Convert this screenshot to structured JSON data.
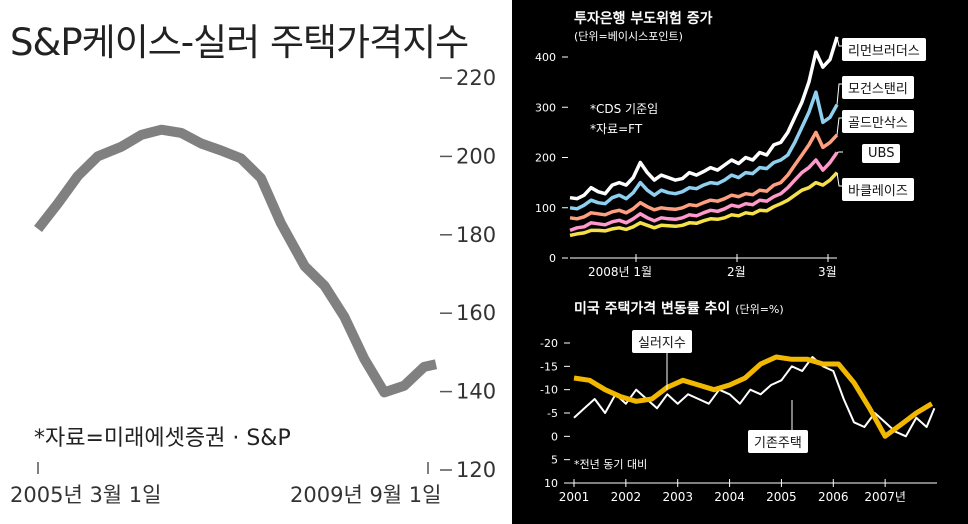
{
  "left_chart": {
    "title": "S&P케이스-실러 주택가격지수",
    "source": "*자료=미래에셋증권 · S&P",
    "chart_data": {
      "type": "line",
      "title": "S&P케이스-실러 주택가격지수",
      "x_labels": [
        "2005년 3월 1일",
        "2009년 9월 1일"
      ],
      "ylim": [
        120,
        220
      ],
      "yticks": [
        220,
        200,
        180,
        160,
        140,
        120
      ],
      "series": [
        {
          "name": "주택가격지수",
          "color": "#808080",
          "x": [
            0,
            0.05,
            0.1,
            0.15,
            0.21,
            0.26,
            0.31,
            0.36,
            0.41,
            0.46,
            0.51,
            0.56,
            0.61,
            0.67,
            0.72,
            0.77,
            0.82,
            0.87,
            0.92,
            0.97,
            1.0
          ],
          "values": [
            181.5,
            188,
            195,
            200,
            202.5,
            205.5,
            206.8,
            206,
            203.3,
            201.5,
            199.5,
            194.5,
            183,
            172,
            167,
            159,
            148.3,
            139.8,
            141.5,
            146.3,
            147
          ]
        }
      ]
    }
  },
  "right_top": {
    "title": "투자은행 부도위험 증가",
    "subtitle": "(단위=베이시스포인트)",
    "notes": [
      "*CDS 기준임",
      "*자료=FT"
    ],
    "chart_data": {
      "type": "line",
      "title": "투자은행 부도위험 증가",
      "ylabel": "베이시스포인트",
      "ylim": [
        0,
        450
      ],
      "yticks": [
        0,
        100,
        200,
        300,
        400
      ],
      "x_labels": [
        "2008년 1월",
        "2월",
        "3월"
      ],
      "series": [
        {
          "name": "리먼브러더스",
          "color": "#ffffff",
          "values": [
            120,
            118,
            125,
            140,
            132,
            128,
            145,
            150,
            145,
            160,
            190,
            170,
            155,
            165,
            160,
            155,
            158,
            170,
            165,
            172,
            180,
            175,
            185,
            195,
            188,
            200,
            195,
            210,
            205,
            225,
            230,
            250,
            280,
            310,
            350,
            410,
            380,
            395,
            440
          ]
        },
        {
          "name": "모건스탠리",
          "color": "#8fd0f0",
          "values": [
            100,
            98,
            105,
            115,
            110,
            108,
            120,
            125,
            118,
            130,
            150,
            135,
            125,
            135,
            130,
            128,
            132,
            140,
            138,
            145,
            150,
            148,
            155,
            165,
            160,
            170,
            168,
            180,
            178,
            190,
            195,
            205,
            230,
            260,
            290,
            330,
            270,
            280,
            305
          ]
        },
        {
          "name": "골드만삭스",
          "color": "#ff9f80",
          "values": [
            80,
            78,
            82,
            90,
            88,
            86,
            92,
            95,
            90,
            98,
            110,
            102,
            96,
            100,
            98,
            97,
            100,
            106,
            104,
            110,
            115,
            113,
            118,
            125,
            122,
            128,
            126,
            135,
            133,
            145,
            150,
            165,
            185,
            205,
            225,
            250,
            220,
            230,
            245
          ]
        },
        {
          "name": "UBS",
          "color": "#ff99cc",
          "values": [
            55,
            60,
            62,
            70,
            68,
            66,
            72,
            75,
            70,
            78,
            88,
            80,
            74,
            80,
            78,
            77,
            80,
            86,
            84,
            90,
            95,
            93,
            98,
            105,
            102,
            108,
            106,
            115,
            113,
            122,
            128,
            140,
            155,
            170,
            180,
            195,
            175,
            190,
            210
          ]
        },
        {
          "name": "바클레이즈",
          "color": "#f5e04a",
          "values": [
            45,
            48,
            50,
            55,
            55,
            54,
            58,
            60,
            57,
            62,
            70,
            65,
            60,
            65,
            64,
            63,
            65,
            70,
            69,
            74,
            78,
            77,
            80,
            86,
            84,
            90,
            88,
            95,
            94,
            102,
            108,
            115,
            125,
            135,
            140,
            150,
            145,
            155,
            170
          ]
        }
      ]
    }
  },
  "right_bottom": {
    "title": "미국 주택가격 변동률 추이",
    "unit": "(단위=%)",
    "note": "*전년 동기 대비",
    "chart_data": {
      "type": "line",
      "title": "미국 주택가격 변동률 추이",
      "ylabel": "%",
      "ylim": [
        10,
        -20
      ],
      "yticks": [
        -20,
        -15,
        -10,
        -5,
        0,
        5,
        10
      ],
      "x_labels": [
        "2001",
        "2002",
        "2003",
        "2004",
        "2005",
        "2006",
        "2007년"
      ],
      "xrange": [
        2001,
        2008
      ],
      "series": [
        {
          "name": "실러지수",
          "color": "#f2b800",
          "x": [
            2001.0,
            2001.3,
            2001.6,
            2001.9,
            2002.2,
            2002.5,
            2002.8,
            2003.1,
            2003.4,
            2003.7,
            2004.0,
            2004.3,
            2004.6,
            2004.9,
            2005.2,
            2005.5,
            2005.8,
            2006.1,
            2006.4,
            2006.7,
            2007.0,
            2007.3,
            2007.6,
            2007.9
          ],
          "values": [
            -12.5,
            -12,
            -10,
            -8.5,
            -7.5,
            -8,
            -10.5,
            -12,
            -11,
            -10,
            -11,
            -12.5,
            -15.5,
            -17,
            -16.5,
            -16.5,
            -15.5,
            -15.5,
            -11.5,
            -6,
            0,
            -2.5,
            -5,
            -7
          ]
        },
        {
          "name": "기존주택",
          "color": "#ffffff",
          "x": [
            2001.0,
            2001.2,
            2001.4,
            2001.6,
            2001.8,
            2002.0,
            2002.2,
            2002.4,
            2002.6,
            2002.8,
            2003.0,
            2003.2,
            2003.4,
            2003.6,
            2003.8,
            2004.0,
            2004.2,
            2004.4,
            2004.6,
            2004.8,
            2005.0,
            2005.2,
            2005.4,
            2005.6,
            2005.8,
            2006.0,
            2006.2,
            2006.4,
            2006.6,
            2006.8,
            2007.0,
            2007.2,
            2007.4,
            2007.6,
            2007.8,
            2007.95
          ],
          "values": [
            -4,
            -6,
            -8,
            -5,
            -9,
            -7,
            -10,
            -8,
            -6,
            -9,
            -7,
            -9,
            -8,
            -7,
            -10,
            -9,
            -7,
            -10,
            -9,
            -11,
            -12,
            -15,
            -14,
            -17,
            -15,
            -14,
            -8,
            -3,
            -2,
            -5,
            -3,
            -1,
            0,
            -4,
            -2,
            -6
          ]
        }
      ]
    }
  },
  "labels": {
    "lehman": "리먼브러더스",
    "morgan": "모건스탠리",
    "goldman": "골드만삭스",
    "ubs": "UBS",
    "barclays": "바클레이즈",
    "shiller": "실러지수",
    "existing": "기존주택"
  }
}
